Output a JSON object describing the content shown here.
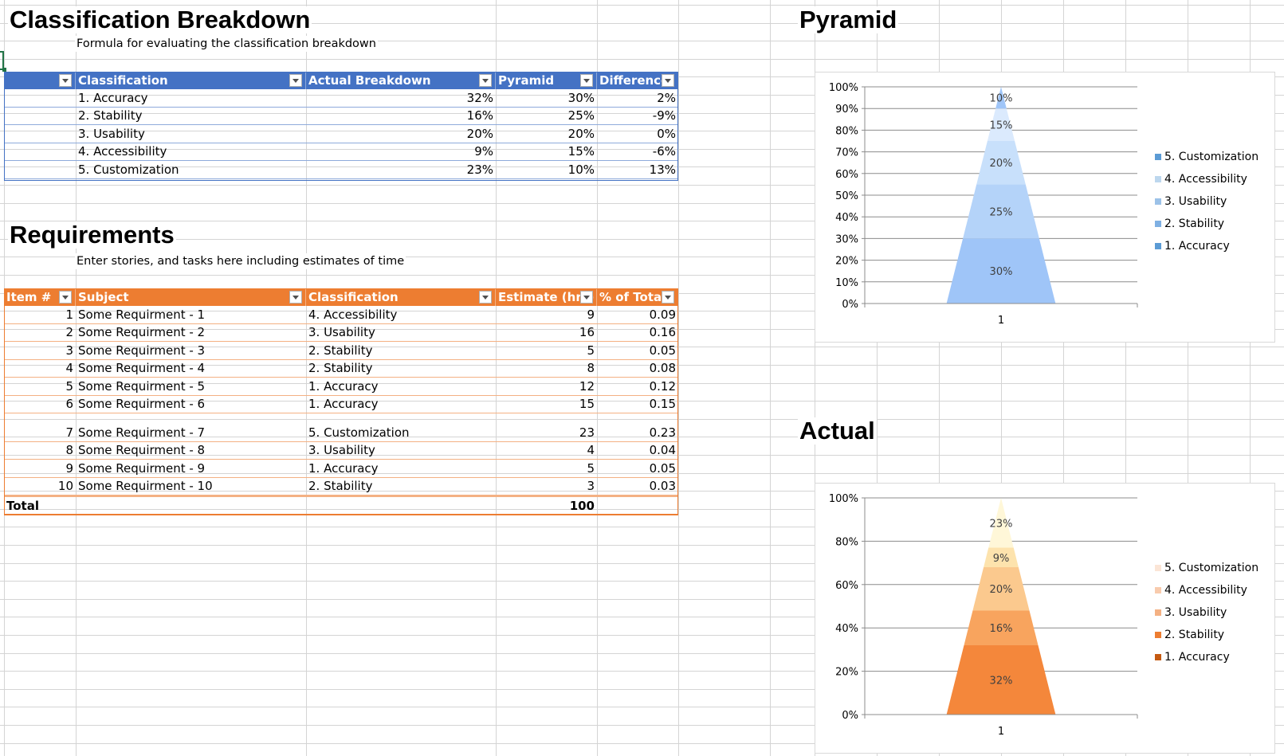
{
  "classification": {
    "title": "Classification Breakdown",
    "subtitle": "Formula for evaluating the classification breakdown",
    "headers": [
      "",
      "Classification",
      "Actual Breakdown",
      "Pyramid",
      "Difference"
    ],
    "rows": [
      [
        "",
        "1. Accuracy",
        "32%",
        "30%",
        "2%"
      ],
      [
        "",
        "2. Stability",
        "16%",
        "25%",
        "-9%"
      ],
      [
        "",
        "3. Usability",
        "20%",
        "20%",
        "0%"
      ],
      [
        "",
        "4. Accessibility",
        "9%",
        "15%",
        "-6%"
      ],
      [
        "",
        "5. Customization",
        "23%",
        "10%",
        "13%"
      ]
    ]
  },
  "requirements": {
    "title": "Requirements",
    "subtitle": "Enter stories, and tasks here including estimates of time",
    "headers": [
      "Item #",
      "Subject",
      "Classification",
      "Estimate (hrs)",
      "% of Total"
    ],
    "rows": [
      [
        "1",
        "Some Requirment - 1",
        "4. Accessibility",
        "9",
        "0.09"
      ],
      [
        "2",
        "Some Requirment - 2",
        "3. Usability",
        "16",
        "0.16"
      ],
      [
        "3",
        "Some Requirment - 3",
        "2. Stability",
        "5",
        "0.05"
      ],
      [
        "4",
        "Some Requirment - 4",
        "2. Stability",
        "8",
        "0.08"
      ],
      [
        "5",
        "Some Requirment - 5",
        "1. Accuracy",
        "12",
        "0.12"
      ],
      [
        "6",
        "Some Requirment - 6",
        "1. Accuracy",
        "15",
        "0.15"
      ],
      [
        "7",
        "Some Requirment - 7",
        "5. Customization",
        "23",
        "0.23"
      ],
      [
        "8",
        "Some Requirment - 8",
        "3. Usability",
        "4",
        "0.04"
      ],
      [
        "9",
        "Some Requirment - 9",
        "1. Accuracy",
        "5",
        "0.05"
      ],
      [
        "10",
        "Some Requirment - 10",
        "2. Stability",
        "3",
        "0.03"
      ]
    ],
    "total_label": "Total",
    "total_value": "100"
  },
  "colors": {
    "blue_header": "#4472c4",
    "orange_header": "#ed7d31",
    "gridline": "#d4d4d4",
    "selection": "#217346"
  },
  "chart_data": [
    {
      "type": "bar",
      "stacked": "100%",
      "shape": "pyramid",
      "title": "Pyramid",
      "categories": [
        "1"
      ],
      "ylim": [
        0,
        100
      ],
      "yticks": [
        "0%",
        "10%",
        "20%",
        "30%",
        "40%",
        "50%",
        "60%",
        "70%",
        "80%",
        "90%",
        "100%"
      ],
      "legend_position": "right",
      "series": [
        {
          "name": "1. Accuracy",
          "values": [
            30
          ],
          "label": "30%",
          "color": "#9fc5f8",
          "legend_color": "#5b9bd5"
        },
        {
          "name": "2. Stability",
          "values": [
            25
          ],
          "label": "25%",
          "color": "#b4d3f9",
          "legend_color": "#7fb0e3"
        },
        {
          "name": "3. Usability",
          "values": [
            20
          ],
          "label": "20%",
          "color": "#c8e0fb",
          "legend_color": "#9cc2e8"
        },
        {
          "name": "4. Accessibility",
          "values": [
            15
          ],
          "label": "15%",
          "color": "#dbeafd",
          "legend_color": "#bdd7ee"
        },
        {
          "name": "5. Customization",
          "values": [
            10
          ],
          "label": "10%",
          "color": "#9fc5f8",
          "legend_color": "#5b9bd5"
        }
      ]
    },
    {
      "type": "bar",
      "stacked": "100%",
      "shape": "pyramid",
      "title": "Actual",
      "categories": [
        "1"
      ],
      "ylim": [
        0,
        100
      ],
      "yticks": [
        "0%",
        "20%",
        "40%",
        "60%",
        "80%",
        "100%"
      ],
      "legend_position": "right",
      "series": [
        {
          "name": "1. Accuracy",
          "values": [
            32
          ],
          "label": "32%",
          "color": "#f4873b",
          "legend_color": "#c55a11"
        },
        {
          "name": "2. Stability",
          "values": [
            16
          ],
          "label": "16%",
          "color": "#f8a45e",
          "legend_color": "#ed7d31"
        },
        {
          "name": "3. Usability",
          "values": [
            20
          ],
          "label": "20%",
          "color": "#fbc98e",
          "legend_color": "#f4b183"
        },
        {
          "name": "4. Accessibility",
          "values": [
            9
          ],
          "label": "9%",
          "color": "#fde3ad",
          "legend_color": "#f8cbad"
        },
        {
          "name": "5. Customization",
          "values": [
            23
          ],
          "label": "23%",
          "color": "#fff7d8",
          "legend_color": "#fbe5d6"
        }
      ]
    }
  ]
}
